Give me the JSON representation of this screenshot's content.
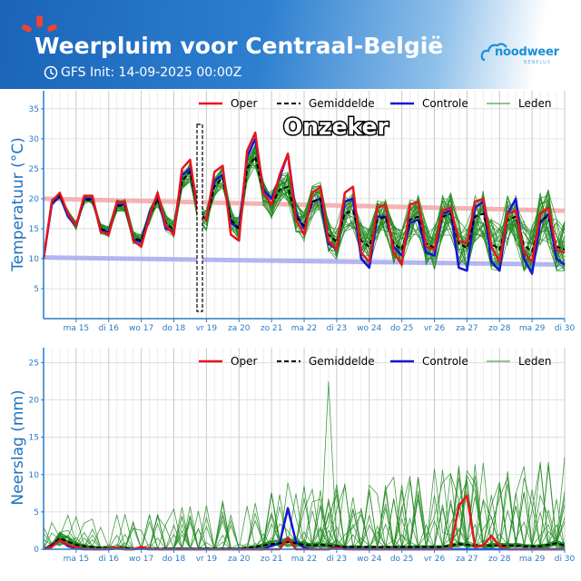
{
  "header": {
    "title": "Weerpluim voor  Centraal-België",
    "init_label": "GFS Init: 14-09-2025 00:00Z",
    "brand_name": "noodweer",
    "brand_sub": "BENELUX",
    "background_color": "#1a64b8"
  },
  "colors": {
    "oper": "#e8141b",
    "mean": "#000000",
    "control": "#1515d6",
    "members": "#228b22",
    "climate_max": "#f4a6a6",
    "climate_min": "#a8a8ee",
    "axis": "#2a7bc4"
  },
  "legend": [
    "Oper",
    "Gemiddelde",
    "Controle",
    "Leden"
  ],
  "x_ticks": [
    "ma 15",
    "di 16",
    "wo 17",
    "do 18",
    "vr 19",
    "za 20",
    "zo 21",
    "ma 22",
    "di 23",
    "wo 24",
    "do 25",
    "vr 26",
    "za 27",
    "zo 28",
    "ma 29",
    "di 30"
  ],
  "chart_data": [
    {
      "type": "line",
      "ylabel": "Temperatuur (°C)",
      "ylim": [
        0,
        38
      ],
      "yticks": [
        5,
        10,
        15,
        20,
        25,
        30,
        35
      ],
      "xlim_days": [
        14.0,
        30.0
      ],
      "annotation": "Onzeker",
      "x": [
        14.0,
        14.25,
        14.5,
        14.75,
        15.0,
        15.25,
        15.5,
        15.75,
        16.0,
        16.25,
        16.5,
        16.75,
        17.0,
        17.25,
        17.5,
        17.75,
        18.0,
        18.25,
        18.5,
        18.75,
        19.0,
        19.25,
        19.5,
        19.75,
        20.0,
        20.25,
        20.5,
        20.75,
        21.0,
        21.25,
        21.5,
        21.75,
        22.0,
        22.25,
        22.5,
        22.75,
        23.0,
        23.25,
        23.5,
        23.75,
        24.0,
        24.25,
        24.5,
        24.75,
        25.0,
        25.25,
        25.5,
        25.75,
        26.0,
        26.25,
        26.5,
        26.75,
        27.0,
        27.25,
        27.5,
        27.75,
        28.0,
        28.25,
        28.5,
        28.75,
        29.0,
        29.25,
        29.5,
        29.75,
        30.0
      ],
      "series": [
        {
          "name": "Oper",
          "values": [
            10,
            19.5,
            21,
            17.5,
            15.5,
            20.5,
            20.5,
            14.5,
            14,
            19.5,
            19.5,
            13,
            12,
            17,
            21,
            15.5,
            14,
            25,
            26.5,
            17,
            16.5,
            24.5,
            25.5,
            14,
            13,
            28,
            31,
            21,
            19,
            24,
            27.5,
            16.5,
            14,
            21,
            22,
            13,
            11.5,
            21,
            22,
            11,
            9.5,
            18.5,
            19,
            11,
            9,
            19,
            19.5,
            12,
            11.5,
            18,
            18.5,
            13,
            12.5,
            19.5,
            20,
            12,
            9.5,
            17.5,
            18,
            11,
            9.5,
            17.5,
            18.5,
            11.5,
            11
          ]
        },
        {
          "name": "Gemiddelde",
          "values": [
            10,
            19.5,
            20.5,
            17.5,
            15.5,
            19.8,
            19.8,
            15,
            14.5,
            18.8,
            18.8,
            13.5,
            13,
            17,
            20,
            16,
            14.8,
            23,
            24.5,
            17.5,
            16.5,
            22,
            23.5,
            16.5,
            15,
            25,
            27,
            21,
            19,
            21.5,
            22,
            17,
            15.5,
            19.5,
            20,
            14,
            12.8,
            17.5,
            18,
            13,
            12,
            16.5,
            17,
            12.5,
            11.5,
            16.5,
            17,
            12.5,
            11.8,
            17,
            17.5,
            12.5,
            11.8,
            17,
            17.5,
            12.5,
            11.5,
            16.5,
            17,
            12.2,
            11.2,
            16.5,
            17,
            12,
            11.5
          ]
        },
        {
          "name": "Controle",
          "values": [
            10,
            19,
            20.5,
            17,
            15.5,
            20,
            20,
            14.8,
            14.5,
            19,
            19,
            13.2,
            12.8,
            17.5,
            20.5,
            15,
            14.5,
            24,
            25,
            17.5,
            16.5,
            23,
            24,
            16,
            15,
            27,
            30,
            21.5,
            20,
            23.5,
            27.5,
            17.5,
            15,
            19.5,
            20,
            12.5,
            11.5,
            19.5,
            20,
            10,
            8.5,
            17,
            17,
            12,
            10.5,
            16,
            16.5,
            11,
            10.5,
            17.5,
            18,
            8.5,
            8,
            18.5,
            19.5,
            9.5,
            8,
            17.5,
            20,
            10,
            7.5,
            16,
            17.5,
            10,
            9
          ]
        }
      ],
      "members_spread": {
        "low_at_noon": 9.5,
        "high_at_noon": 26.5
      },
      "climate_max": {
        "start": 20,
        "end": 18
      },
      "climate_min": {
        "start": 10.2,
        "end": 9
      }
    },
    {
      "type": "line",
      "ylabel": "Neerslag (mm)",
      "ylim": [
        0,
        27
      ],
      "yticks": [
        0,
        5,
        10,
        15,
        20,
        25
      ],
      "xlim_days": [
        14.0,
        30.0
      ],
      "x": [
        14.0,
        14.25,
        14.5,
        14.75,
        15.0,
        15.25,
        15.5,
        15.75,
        16.0,
        16.25,
        16.5,
        16.75,
        17.0,
        17.25,
        17.5,
        17.75,
        18.0,
        18.25,
        18.5,
        18.75,
        19.0,
        19.25,
        19.5,
        19.75,
        20.0,
        20.25,
        20.5,
        20.75,
        21.0,
        21.25,
        21.5,
        21.75,
        22.0,
        22.25,
        22.5,
        22.75,
        23.0,
        23.25,
        23.5,
        23.75,
        24.0,
        24.25,
        24.5,
        24.75,
        25.0,
        25.25,
        25.5,
        25.75,
        26.0,
        26.25,
        26.5,
        26.75,
        27.0,
        27.25,
        27.5,
        27.75,
        28.0,
        28.25,
        28.5,
        28.75,
        29.0,
        29.25,
        29.5,
        29.75,
        30.0
      ],
      "series": [
        {
          "name": "Oper",
          "values": [
            0,
            0.3,
            1.2,
            0.6,
            0.2,
            0.1,
            0,
            0,
            0.1,
            0.2,
            0,
            0,
            0.3,
            0.1,
            0,
            0,
            0,
            0,
            0,
            0,
            0,
            0,
            0,
            0,
            0,
            0,
            0,
            0,
            0,
            0,
            1.5,
            0,
            0,
            0,
            0,
            0,
            0.2,
            0,
            0,
            0,
            0,
            0,
            0,
            0,
            0,
            0,
            0,
            0,
            0,
            0,
            0,
            5.8,
            7.2,
            0.3,
            0.5,
            1.8,
            0.4,
            0,
            0,
            0,
            0,
            0,
            0,
            0,
            0
          ]
        },
        {
          "name": "Gemiddelde",
          "values": [
            0,
            0.5,
            1.5,
            1,
            0.6,
            0.4,
            0.3,
            0.2,
            0.2,
            0.2,
            0.2,
            0.1,
            0.1,
            0.1,
            0.1,
            0.1,
            0.1,
            0.1,
            0.1,
            0.1,
            0.1,
            0.1,
            0.1,
            0.1,
            0.1,
            0.2,
            0.3,
            0.5,
            0.7,
            0.8,
            1,
            0.8,
            0.6,
            0.5,
            0.6,
            0.5,
            0.4,
            0.3,
            0.3,
            0.3,
            0.3,
            0.3,
            0.3,
            0.3,
            0.3,
            0.3,
            0.3,
            0.3,
            0.3,
            0.3,
            0.5,
            0.7,
            0.6,
            0.5,
            0.5,
            0.5,
            0.5,
            0.5,
            0.5,
            0.4,
            0.4,
            0.4,
            0.6,
            0.8,
            0.5
          ]
        },
        {
          "name": "Controle",
          "values": [
            0,
            0.5,
            1.3,
            0.4,
            0.1,
            0,
            0,
            0,
            0,
            0.1,
            0,
            0,
            0.1,
            0,
            0,
            0,
            0,
            0,
            0,
            0,
            0,
            0,
            0,
            0,
            0,
            0,
            0,
            0,
            0.5,
            0.8,
            5.5,
            1,
            0.2,
            0,
            0,
            0,
            0.3,
            0.1,
            0,
            0,
            0,
            0,
            0,
            0,
            0,
            0,
            0,
            0,
            0,
            0,
            0,
            0,
            0,
            0,
            0,
            0,
            0,
            0,
            0,
            0,
            0,
            0,
            0,
            0,
            0
          ]
        }
      ],
      "members_peak": 22.5
    }
  ]
}
